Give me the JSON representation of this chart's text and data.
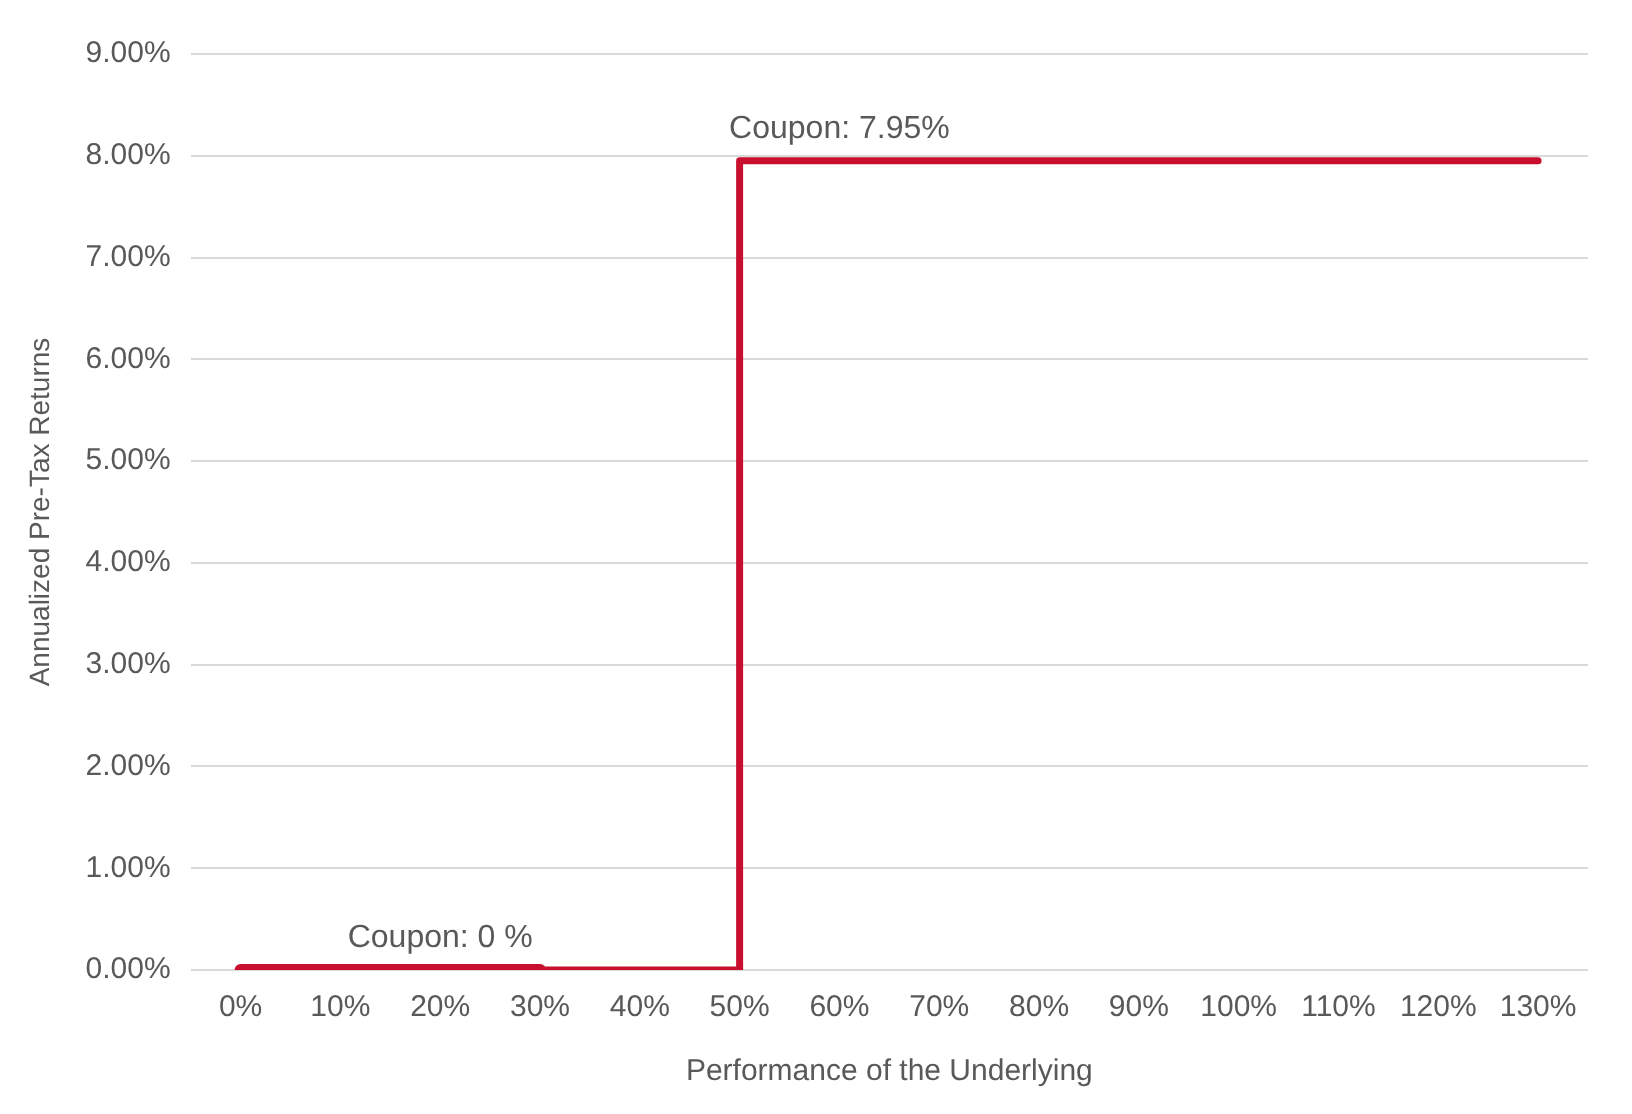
{
  "chart_data": {
    "type": "step",
    "xlabel": "Performance of the Underlying",
    "ylabel": "Annualized Pre-Tax Returns",
    "categories": [
      "0%",
      "10%",
      "20%",
      "30%",
      "40%",
      "50%",
      "60%",
      "70%",
      "80%",
      "90%",
      "100%",
      "110%",
      "120%",
      "130%"
    ],
    "series": [
      {
        "color": "#c8102e",
        "values": [
          0,
          0,
          0,
          0,
          0,
          7.95,
          7.95,
          7.95,
          7.95,
          7.95,
          7.95,
          7.95,
          7.95,
          7.95
        ]
      },
      {
        "type": "line",
        "color": "#c8102e",
        "values": [
          0,
          0,
          0,
          0,
          null,
          null,
          null,
          null,
          null,
          null,
          null,
          null,
          null,
          null
        ]
      }
    ],
    "ylim": [
      0,
      9
    ],
    "yticks": [
      {
        "value": 0,
        "label": "0.00%"
      },
      {
        "value": 1,
        "label": "1.00%"
      },
      {
        "value": 2,
        "label": "2.00%"
      },
      {
        "value": 3,
        "label": "3.00%"
      },
      {
        "value": 4,
        "label": "4.00%"
      },
      {
        "value": 5,
        "label": "5.00%"
      },
      {
        "value": 6,
        "label": "6.00%"
      },
      {
        "value": 7,
        "label": "7.00%"
      },
      {
        "value": 8,
        "label": "8.00%"
      },
      {
        "value": 9,
        "label": "9.00%"
      }
    ],
    "grid": "y",
    "legend": false,
    "marker": "none",
    "line_style": "solid",
    "annotations": [
      {
        "text": "Coupon: 0 %",
        "x": "20%",
        "y": 0
      },
      {
        "text": "Coupon: 7.95%",
        "x": "60%",
        "y": 7.95
      }
    ]
  }
}
